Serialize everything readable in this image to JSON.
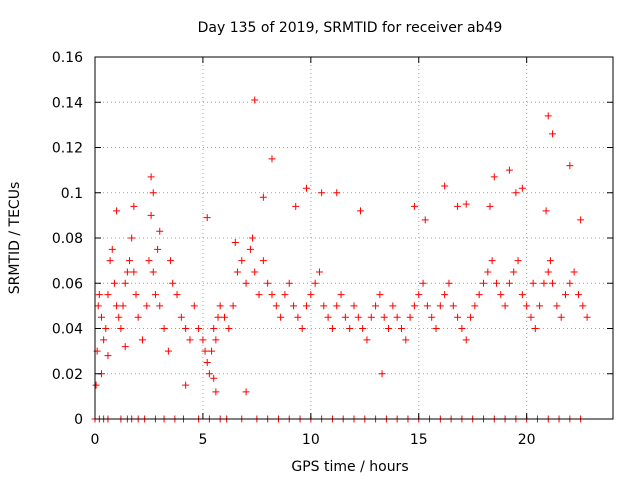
{
  "chart_data": {
    "type": "scatter",
    "title": "Day 135 of 2019, SRMTID for receiver ab49",
    "xlabel": "GPS time / hours",
    "ylabel": "SRMTID / TECUs",
    "xlim": [
      0,
      24
    ],
    "ylim": [
      0,
      0.16
    ],
    "xticks": [
      0,
      5,
      10,
      15,
      20
    ],
    "xtick_labels": [
      "0",
      "5",
      "10",
      "15",
      "20"
    ],
    "yticks": [
      0,
      0.02,
      0.04,
      0.06,
      0.08,
      0.1,
      0.12,
      0.14,
      0.16
    ],
    "ytick_labels": [
      "0",
      "0.02",
      "0.04",
      "0.06",
      "0.08",
      "0.1",
      "0.12",
      "0.14",
      "0.16"
    ],
    "grid": true,
    "marker": "+",
    "marker_color": "#ff0000",
    "series": [
      {
        "name": "SRMTID",
        "x": [
          0.05,
          0.1,
          0.15,
          0.2,
          0.3,
          0.4,
          0.5,
          0.6,
          0.7,
          0.8,
          0.9,
          1.0,
          1.1,
          1.2,
          1.3,
          1.4,
          1.5,
          1.6,
          1.7,
          1.8,
          1.9,
          2.0,
          2.2,
          2.4,
          2.5,
          2.6,
          2.7,
          2.8,
          2.9,
          3.0,
          3.2,
          3.4,
          3.6,
          3.8,
          4.0,
          4.2,
          4.4,
          4.6,
          4.8,
          5.0,
          5.1,
          5.2,
          5.3,
          5.4,
          5.5,
          5.6,
          5.7,
          5.8,
          6.0,
          6.2,
          6.4,
          6.6,
          6.8,
          7.0,
          7.2,
          7.3,
          7.4,
          7.6,
          7.8,
          8.0,
          8.2,
          8.4,
          8.6,
          8.8,
          9.0,
          9.2,
          9.4,
          9.6,
          9.8,
          10.0,
          10.2,
          10.4,
          10.6,
          10.8,
          11.0,
          11.2,
          11.4,
          11.6,
          11.8,
          12.0,
          12.2,
          12.4,
          12.6,
          12.8,
          13.0,
          13.2,
          13.4,
          13.6,
          13.8,
          14.0,
          14.2,
          14.4,
          14.6,
          14.8,
          15.0,
          15.2,
          15.4,
          15.6,
          15.8,
          16.0,
          16.2,
          16.4,
          16.6,
          16.8,
          17.0,
          17.2,
          17.4,
          17.6,
          17.8,
          18.0,
          18.2,
          18.4,
          18.6,
          18.8,
          19.0,
          19.2,
          19.4,
          19.6,
          19.8,
          20.0,
          20.2,
          20.4,
          20.6,
          20.8,
          21.0,
          21.1,
          21.2,
          21.4,
          21.6,
          21.8,
          22.0,
          22.2,
          22.4,
          22.6,
          22.8,
          0.3,
          0.6,
          1.0,
          1.4,
          1.8,
          2.6,
          2.7,
          3.0,
          3.5,
          4.2,
          5.2,
          5.5,
          5.6,
          6.5,
          7.0,
          7.4,
          7.8,
          8.2,
          9.3,
          9.8,
          10.5,
          11.2,
          12.3,
          13.3,
          14.8,
          15.3,
          16.2,
          16.8,
          17.2,
          18.3,
          18.5,
          19.2,
          19.5,
          19.8,
          20.3,
          20.9,
          21.0,
          21.2,
          22.0,
          22.5,
          0.0,
          0.2,
          0.4,
          0.6,
          1.2,
          1.5,
          1.7,
          2.0,
          2.3,
          2.8,
          3.2,
          3.7,
          4.1,
          4.8,
          5.3,
          5.8,
          6.1,
          6.8,
          7.5,
          8.0,
          8.5,
          9.0,
          9.5,
          10.0,
          10.5,
          11.0,
          11.5,
          12.0,
          12.5,
          13.0,
          13.5,
          14.0,
          14.5,
          15.0,
          15.5,
          16.0,
          16.5,
          17.0,
          17.5,
          18.0,
          18.5,
          19.0,
          19.5,
          20.0,
          20.5,
          21.0,
          21.5,
          22.0,
          22.5
        ],
        "y": [
          0.015,
          0.03,
          0.05,
          0.055,
          0.045,
          0.035,
          0.04,
          0.055,
          0.07,
          0.075,
          0.06,
          0.05,
          0.045,
          0.04,
          0.05,
          0.06,
          0.065,
          0.07,
          0.08,
          0.065,
          0.055,
          0.045,
          0.035,
          0.05,
          0.07,
          0.09,
          0.065,
          0.055,
          0.075,
          0.05,
          0.04,
          0.03,
          0.06,
          0.055,
          0.045,
          0.04,
          0.035,
          0.05,
          0.04,
          0.035,
          0.03,
          0.025,
          0.02,
          0.03,
          0.04,
          0.035,
          0.045,
          0.05,
          0.045,
          0.04,
          0.05,
          0.065,
          0.07,
          0.06,
          0.075,
          0.08,
          0.065,
          0.055,
          0.07,
          0.06,
          0.055,
          0.05,
          0.045,
          0.055,
          0.06,
          0.05,
          0.045,
          0.04,
          0.05,
          0.055,
          0.06,
          0.065,
          0.05,
          0.045,
          0.04,
          0.05,
          0.055,
          0.045,
          0.04,
          0.05,
          0.045,
          0.04,
          0.035,
          0.045,
          0.05,
          0.055,
          0.045,
          0.04,
          0.05,
          0.045,
          0.04,
          0.035,
          0.045,
          0.05,
          0.055,
          0.06,
          0.05,
          0.045,
          0.04,
          0.05,
          0.055,
          0.06,
          0.05,
          0.045,
          0.04,
          0.035,
          0.045,
          0.05,
          0.055,
          0.06,
          0.065,
          0.07,
          0.06,
          0.055,
          0.05,
          0.06,
          0.065,
          0.07,
          0.055,
          0.05,
          0.045,
          0.04,
          0.05,
          0.06,
          0.065,
          0.07,
          0.06,
          0.05,
          0.045,
          0.055,
          0.06,
          0.065,
          0.055,
          0.05,
          0.045,
          0.02,
          0.028,
          0.092,
          0.032,
          0.094,
          0.107,
          0.1,
          0.083,
          0.07,
          0.015,
          0.089,
          0.018,
          0.012,
          0.078,
          0.012,
          0.141,
          0.098,
          0.115,
          0.094,
          0.102,
          0.1,
          0.1,
          0.092,
          0.02,
          0.094,
          0.088,
          0.103,
          0.094,
          0.095,
          0.094,
          0.107,
          0.11,
          0.1,
          0.102,
          0.06,
          0.092,
          0.134,
          0.126,
          0.112,
          0.088,
          0.0,
          0.0,
          0.0,
          0.0,
          0.0,
          0.0,
          0.0,
          0.0,
          0.0,
          0.0,
          0.0,
          0.0,
          0.0,
          0.0,
          0.0,
          0.0,
          0.0,
          0.0,
          0.0,
          0.0,
          0.0,
          0.0,
          0.0,
          0.0,
          0.0,
          0.0,
          0.0,
          0.0,
          0.0,
          0.0,
          0.0,
          0.0,
          0.0,
          0.0,
          0.0,
          0.0,
          0.0,
          0.0,
          0.0,
          0.0,
          0.0,
          0.0,
          0.0,
          0.0,
          0.0,
          0.0,
          0.0,
          0.0,
          0.0
        ]
      }
    ]
  }
}
